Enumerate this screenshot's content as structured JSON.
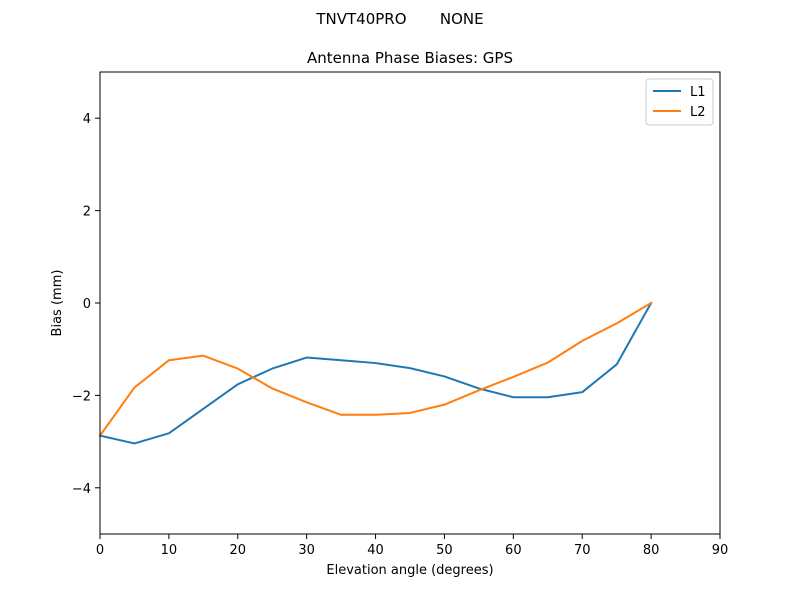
{
  "figure": {
    "suptitle": "TNVT40PRO       NONE"
  },
  "chart_data": {
    "type": "line",
    "title": "Antenna Phase Biases: GPS",
    "xlabel": "Elevation angle (degrees)",
    "ylabel": "Bias (mm)",
    "xlim": [
      0,
      90
    ],
    "ylim": [
      -5,
      5
    ],
    "xticks": [
      0,
      10,
      20,
      30,
      40,
      50,
      60,
      70,
      80,
      90
    ],
    "yticks": [
      -4,
      -2,
      0,
      2,
      4
    ],
    "ytick_labels": [
      "−4",
      "−2",
      "0",
      "2",
      "4"
    ],
    "grid": false,
    "legend_position": "top-right",
    "x": [
      0,
      5,
      10,
      15,
      20,
      25,
      30,
      35,
      40,
      45,
      50,
      55,
      60,
      65,
      70,
      75,
      80
    ],
    "series": [
      {
        "name": "L1",
        "color": "#1f77b4",
        "values": [
          -2.87,
          -3.04,
          -2.82,
          -2.29,
          -1.76,
          -1.42,
          -1.18,
          -1.24,
          -1.3,
          -1.41,
          -1.59,
          -1.85,
          -2.04,
          -2.04,
          -1.93,
          -1.33,
          0.0
        ]
      },
      {
        "name": "L2",
        "color": "#ff7f0e",
        "values": [
          -2.87,
          -1.83,
          -1.24,
          -1.14,
          -1.42,
          -1.85,
          -2.15,
          -2.42,
          -2.42,
          -2.38,
          -2.2,
          -1.89,
          -1.6,
          -1.29,
          -0.82,
          -0.44,
          0.0
        ]
      }
    ]
  }
}
